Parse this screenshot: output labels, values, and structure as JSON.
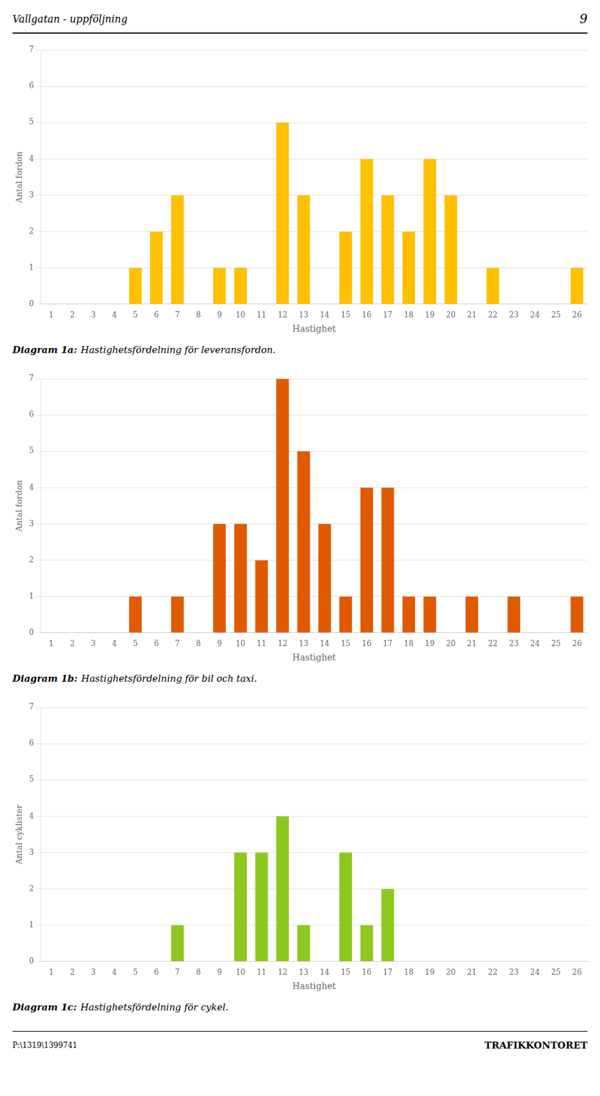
{
  "header": [
    "Vallgatan - uppföljning",
    "9"
  ],
  "footer": [
    "P:\\1319\\1399741",
    "TRAFIKKONTORET"
  ],
  "chart_data": [
    {
      "type": "bar",
      "subtitle": "Diagram 1a: Hastighetsfördelning för leveransfordon.",
      "xlabel": "Hastighet",
      "ylabel": "Antal fordon",
      "categories": [
        1,
        2,
        3,
        4,
        5,
        6,
        7,
        8,
        9,
        10,
        11,
        12,
        13,
        14,
        15,
        16,
        17,
        18,
        19,
        20,
        21,
        22,
        23,
        24,
        25,
        26
      ],
      "values": [
        0,
        0,
        0,
        0,
        1,
        2,
        3,
        0,
        1,
        1,
        0,
        5,
        3,
        0,
        2,
        4,
        3,
        2,
        4,
        3,
        0,
        1,
        0,
        0,
        0,
        1
      ],
      "color": "#FFC000",
      "ylim": [
        0,
        7
      ],
      "yticks": [
        0,
        1,
        2,
        3,
        4,
        5,
        6,
        7
      ],
      "grid": true
    },
    {
      "type": "bar",
      "subtitle": "Diagram 1b: Hastighetsfördelning för bil och taxi.",
      "xlabel": "Hastighet",
      "ylabel": "Antal fordon",
      "categories": [
        1,
        2,
        3,
        4,
        5,
        6,
        7,
        8,
        9,
        10,
        11,
        12,
        13,
        14,
        15,
        16,
        17,
        18,
        19,
        20,
        21,
        22,
        23,
        24,
        25,
        26
      ],
      "values": [
        0,
        0,
        0,
        0,
        1,
        0,
        1,
        0,
        3,
        3,
        2,
        7,
        5,
        3,
        1,
        4,
        4,
        1,
        1,
        0,
        1,
        0,
        1,
        0,
        0,
        1
      ],
      "color": "#E05A00",
      "ylim": [
        0,
        7
      ],
      "yticks": [
        0,
        1,
        2,
        3,
        4,
        5,
        6,
        7
      ],
      "grid": true
    },
    {
      "type": "bar",
      "subtitle": "Diagram 1c: Hastighetsfördelning för cykel.",
      "xlabel": "Hastighet",
      "ylabel": "Antal cyklister",
      "categories": [
        1,
        2,
        3,
        4,
        5,
        6,
        7,
        8,
        9,
        10,
        11,
        12,
        13,
        14,
        15,
        16,
        17,
        18,
        19,
        20,
        21,
        22,
        23,
        24,
        25,
        26
      ],
      "values": [
        0,
        0,
        0,
        0,
        0,
        0,
        1,
        0,
        0,
        3,
        3,
        4,
        1,
        0,
        3,
        1,
        2,
        0,
        0,
        0,
        0,
        0,
        0,
        0,
        0,
        0
      ],
      "color": "#8CC820",
      "ylim": [
        0,
        7
      ],
      "yticks": [
        0,
        1,
        2,
        3,
        4,
        5,
        6,
        7
      ],
      "grid": true
    }
  ]
}
